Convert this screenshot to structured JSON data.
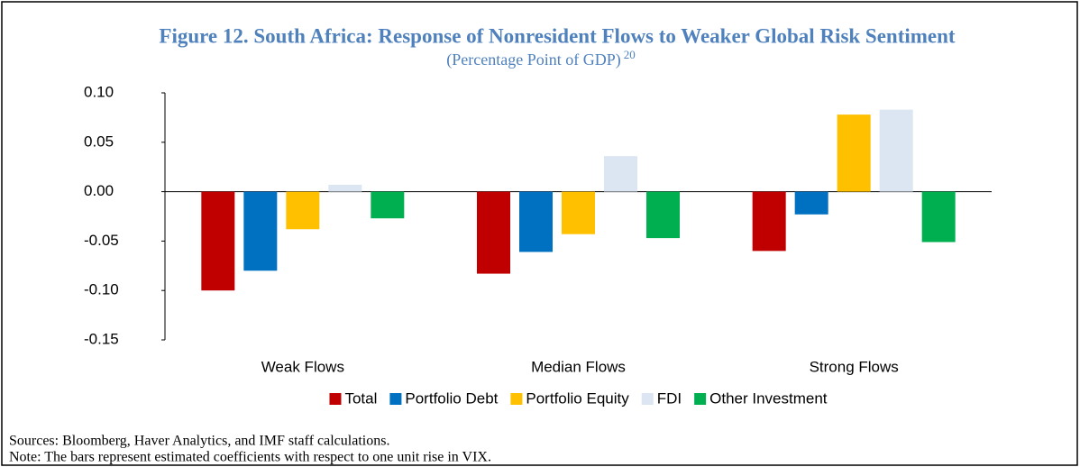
{
  "chart_data": {
    "type": "bar",
    "title": "Figure 12. South Africa: Response of Nonresident Flows to Weaker Global Risk Sentiment",
    "subtitle": "(Percentage Point of GDP)",
    "subtitle_footnote": "20",
    "categories": [
      "Weak Flows",
      "Median Flows",
      "Strong Flows"
    ],
    "series": [
      {
        "name": "Total",
        "color": "#c00000",
        "values": [
          -0.1,
          -0.083,
          -0.06
        ]
      },
      {
        "name": "Portfolio Debt",
        "color": "#0070c0",
        "values": [
          -0.08,
          -0.061,
          -0.023
        ]
      },
      {
        "name": "Portfolio Equity",
        "color": "#ffc000",
        "values": [
          -0.038,
          -0.043,
          0.078
        ]
      },
      {
        "name": "FDI",
        "color": "#dce6f2",
        "values": [
          0.007,
          0.036,
          0.083
        ]
      },
      {
        "name": "Other Investment",
        "color": "#00b050",
        "values": [
          -0.027,
          -0.047,
          -0.051
        ]
      }
    ],
    "ylim": [
      -0.15,
      0.1
    ],
    "yticks": [
      {
        "value": 0.1,
        "label": "0.10"
      },
      0.05,
      {
        "value": 0,
        "label": "0.00"
      },
      -0.05,
      {
        "value": -0.1,
        "label": "-0.10"
      },
      -0.15
    ],
    "legend": "bottom",
    "sources": "Sources: Bloomberg, Haver Analytics, and IMF staff calculations.",
    "note": "Note: The bars represent estimated coefficients with respect to one unit rise in VIX."
  }
}
